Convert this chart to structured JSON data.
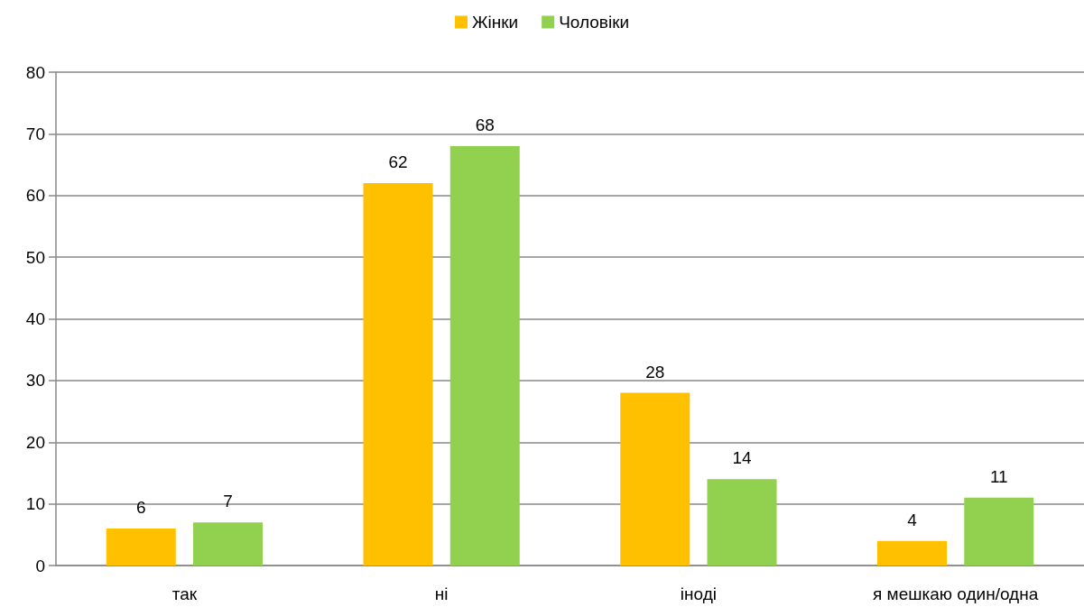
{
  "chart_data": {
    "type": "bar",
    "categories": [
      "так",
      "ні",
      "іноді",
      "я мешкаю один/одна"
    ],
    "series": [
      {
        "name": "Жінки",
        "color": "#ffc000",
        "values": [
          6,
          62,
          28,
          4
        ]
      },
      {
        "name": "Чоловіки",
        "color": "#92d050",
        "values": [
          7,
          68,
          14,
          11
        ]
      }
    ],
    "ylim": [
      0,
      80
    ],
    "yticks": [
      0,
      10,
      20,
      30,
      40,
      50,
      60,
      70,
      80
    ],
    "grid": "y",
    "legend": "top",
    "data_labels": true
  }
}
